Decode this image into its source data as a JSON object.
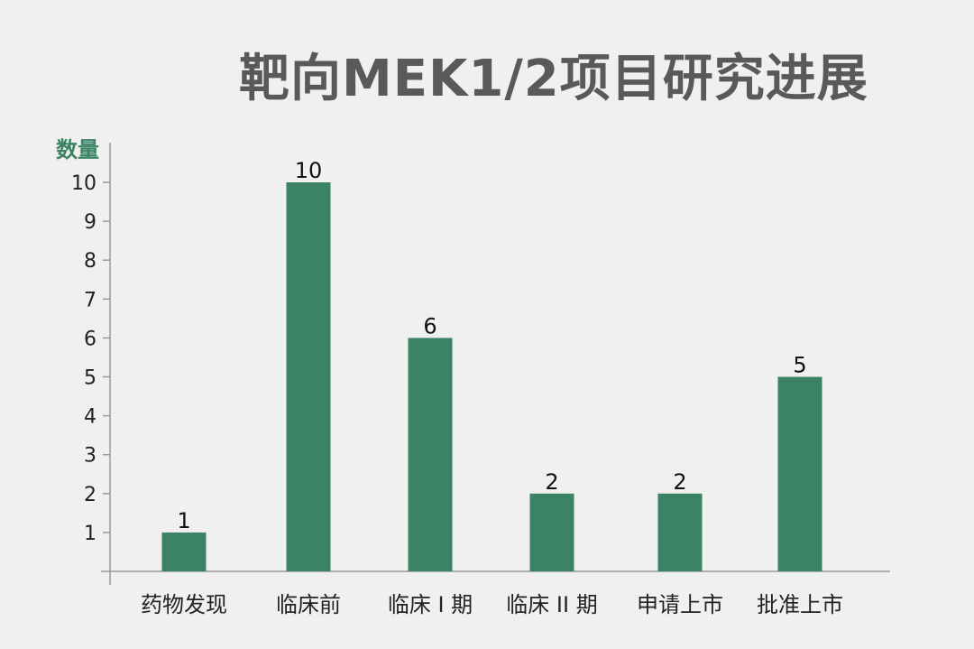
{
  "chart_data": {
    "type": "bar",
    "title": "靶向MEK1/2项目研究进展",
    "ylabel": "数量",
    "xlabel": "",
    "categories": [
      "药物发现",
      "临床前",
      "临床 I 期",
      "临床 II 期",
      "申请上市",
      "批准上市"
    ],
    "values": [
      1,
      10,
      6,
      2,
      2,
      5
    ],
    "ylim": [
      0,
      10
    ],
    "yticks": [
      1,
      2,
      3,
      4,
      5,
      6,
      7,
      8,
      9,
      10
    ],
    "grid": false,
    "legend": "none",
    "bar_color": "#3b8364",
    "axis_color": "#999999",
    "background_color": "#f0f0f0"
  }
}
